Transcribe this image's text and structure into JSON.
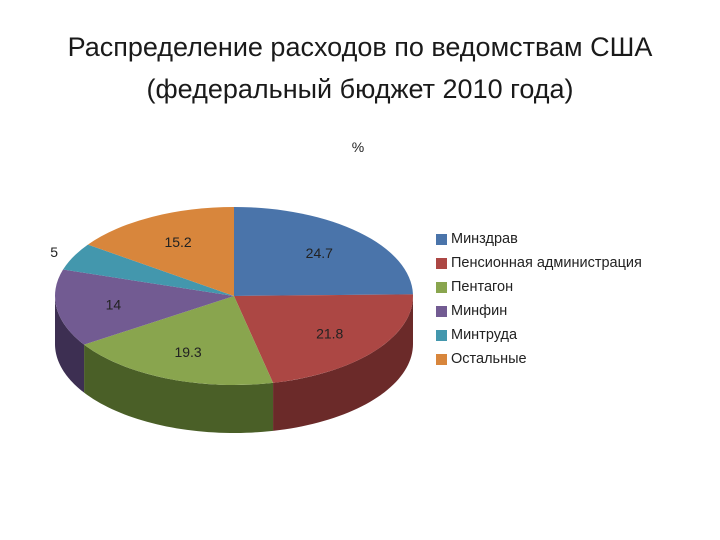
{
  "slide": {
    "title_line1": "Распределение расходов по ведомствам США",
    "title_line2": "(федеральный бюджет 2010 года)"
  },
  "chart_data": {
    "type": "pie",
    "title": "%",
    "style": "3d",
    "start_angle_deg": 0,
    "direction": "clockwise",
    "legend_position": "right",
    "categories": [
      "Минздрав",
      "Пенсионная администрация",
      "Пентагон",
      "Минфин",
      "Минтруда",
      "Остальные"
    ],
    "values": [
      24.7,
      21.8,
      19.3,
      14,
      5,
      15.2
    ],
    "value_labels": [
      "24.7",
      "21.8",
      "19.3",
      "14",
      "5",
      "15.2"
    ],
    "colors": [
      "#4a74aa",
      "#ac4744",
      "#89a54e",
      "#725b92",
      "#4397ad",
      "#d8863c"
    ],
    "side_colors": [
      "#2f4a6e",
      "#6b2a29",
      "#4a5f27",
      "#3d2f52",
      "#26596a",
      "#8a5320"
    ]
  }
}
